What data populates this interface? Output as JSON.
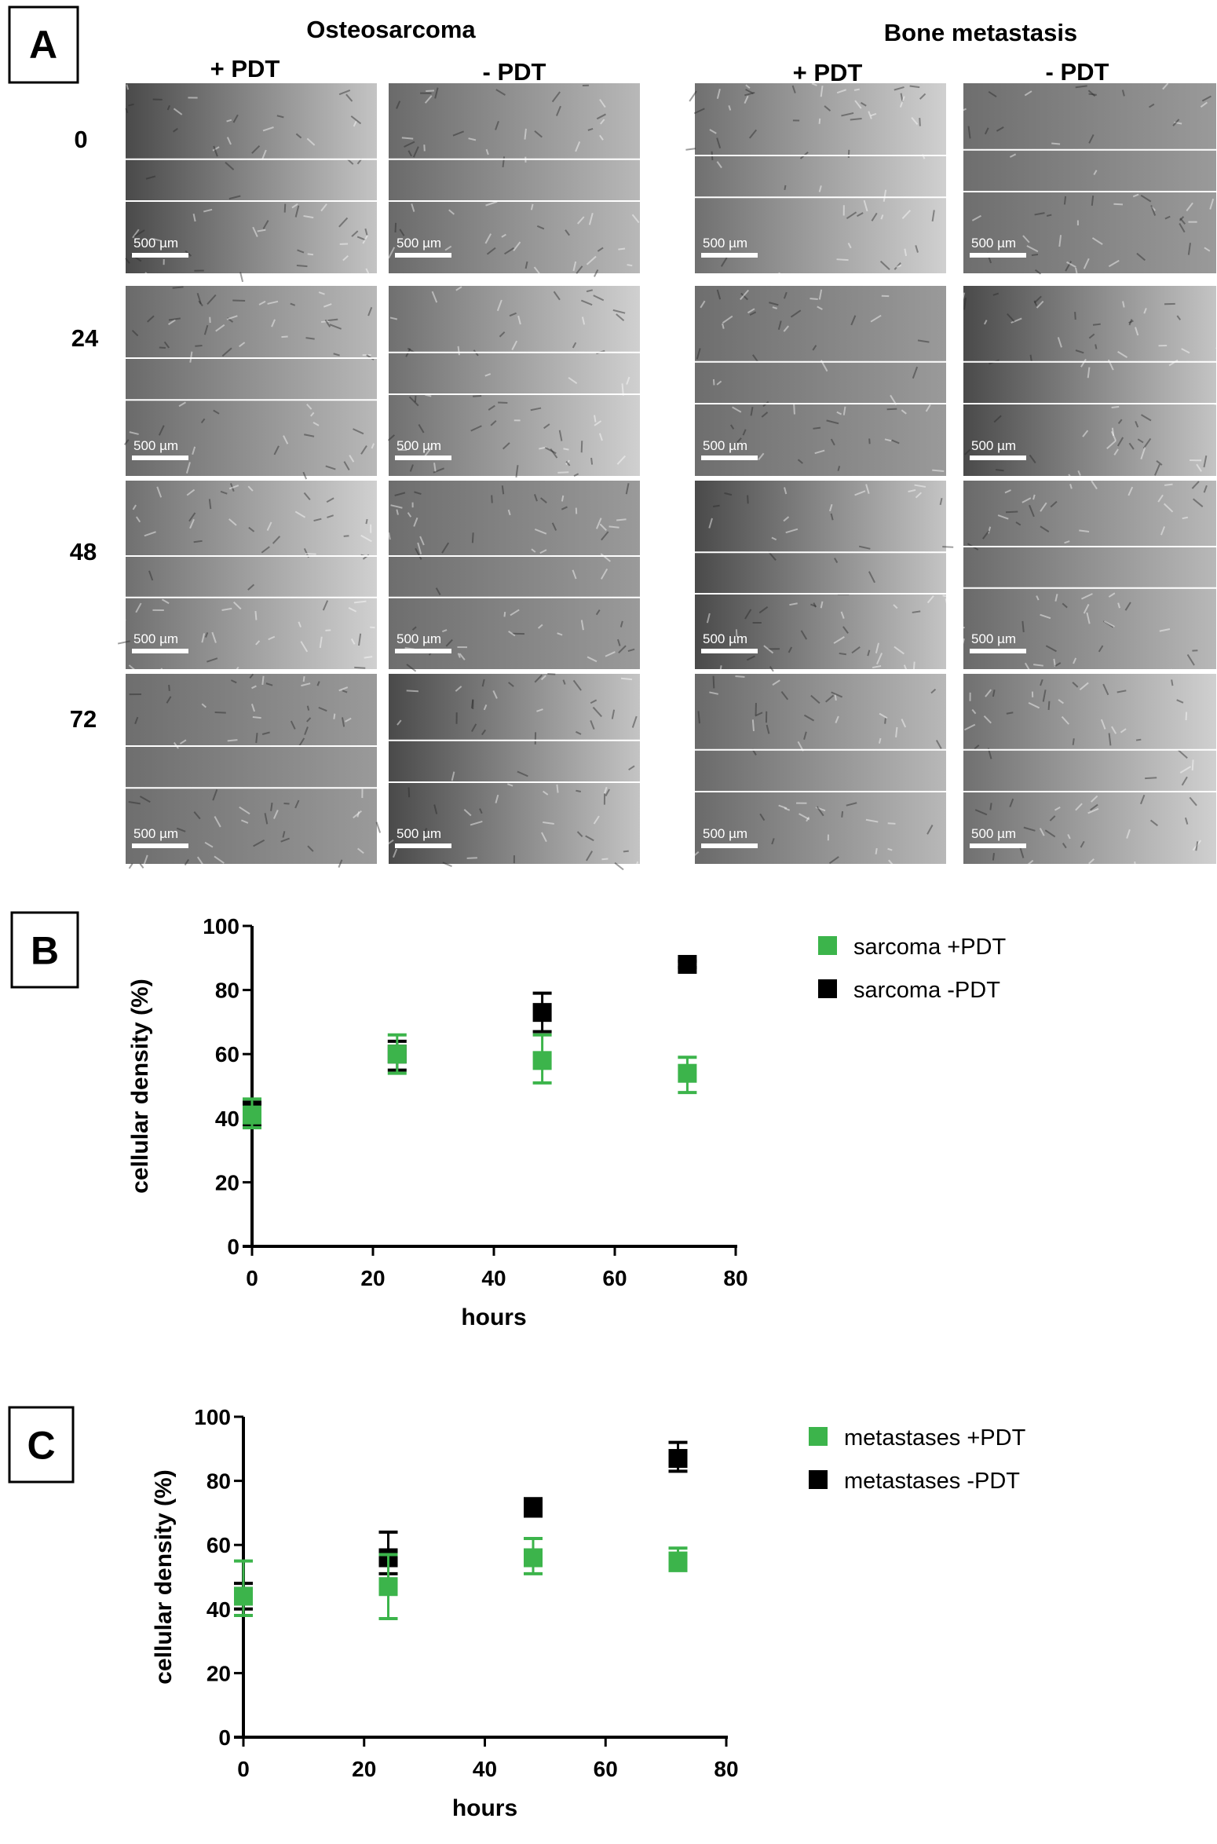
{
  "panel_a": {
    "label": "A",
    "groups": [
      {
        "title": "Osteosarcoma",
        "conditions": [
          "+ PDT",
          "- PDT"
        ]
      },
      {
        "title": "Bone metastasis",
        "conditions": [
          "+ PDT",
          "- PDT"
        ]
      }
    ],
    "timepoints": [
      "0",
      "24",
      "48",
      "72"
    ],
    "scale_bar": "500 µm"
  },
  "chart_data": [
    {
      "panel_label": "B",
      "type": "scatter",
      "xlabel": "hours",
      "ylabel": "cellular density (%)",
      "xlim": [
        0,
        80
      ],
      "ylim": [
        0,
        100
      ],
      "xticks": [
        "0",
        "20",
        "40",
        "60",
        "80"
      ],
      "yticks": [
        "0",
        "20",
        "40",
        "60",
        "80",
        "100"
      ],
      "legend_position": "top-right",
      "series": [
        {
          "name": "sarcoma -PDT",
          "color": "#000000",
          "x": [
            0,
            24,
            48,
            72
          ],
          "y": [
            42,
            60,
            73,
            88
          ],
          "err_low": [
            38,
            55,
            67,
            87
          ],
          "err_high": [
            45,
            64,
            79,
            89
          ]
        },
        {
          "name": "sarcoma +PDT",
          "color": "#3cb44b",
          "x": [
            0,
            24,
            48,
            72
          ],
          "y": [
            41,
            60,
            58,
            54
          ],
          "err_low": [
            37,
            54,
            51,
            48
          ],
          "err_high": [
            46,
            66,
            66,
            59
          ]
        }
      ],
      "legend_order": [
        1,
        0
      ]
    },
    {
      "panel_label": "C",
      "type": "scatter",
      "xlabel": "hours",
      "ylabel": "cellular density (%)",
      "xlim": [
        0,
        80
      ],
      "ylim": [
        0,
        100
      ],
      "xticks": [
        "0",
        "20",
        "40",
        "60",
        "80"
      ],
      "yticks": [
        "0",
        "20",
        "40",
        "60",
        "80",
        "100"
      ],
      "legend_position": "top-right",
      "series": [
        {
          "name": "metastases -PDT",
          "color": "#000000",
          "x": [
            0,
            24,
            48,
            72
          ],
          "y": [
            44,
            56,
            72,
            87
          ],
          "err_low": [
            40,
            51,
            69,
            83
          ],
          "err_high": [
            48,
            64,
            74,
            92
          ]
        },
        {
          "name": "metastases +PDT",
          "color": "#3cb44b",
          "x": [
            0,
            24,
            48,
            72
          ],
          "y": [
            44,
            47,
            56,
            55
          ],
          "err_low": [
            38,
            37,
            51,
            52
          ],
          "err_high": [
            55,
            57,
            62,
            59
          ]
        }
      ],
      "legend_order": [
        1,
        0
      ]
    }
  ]
}
